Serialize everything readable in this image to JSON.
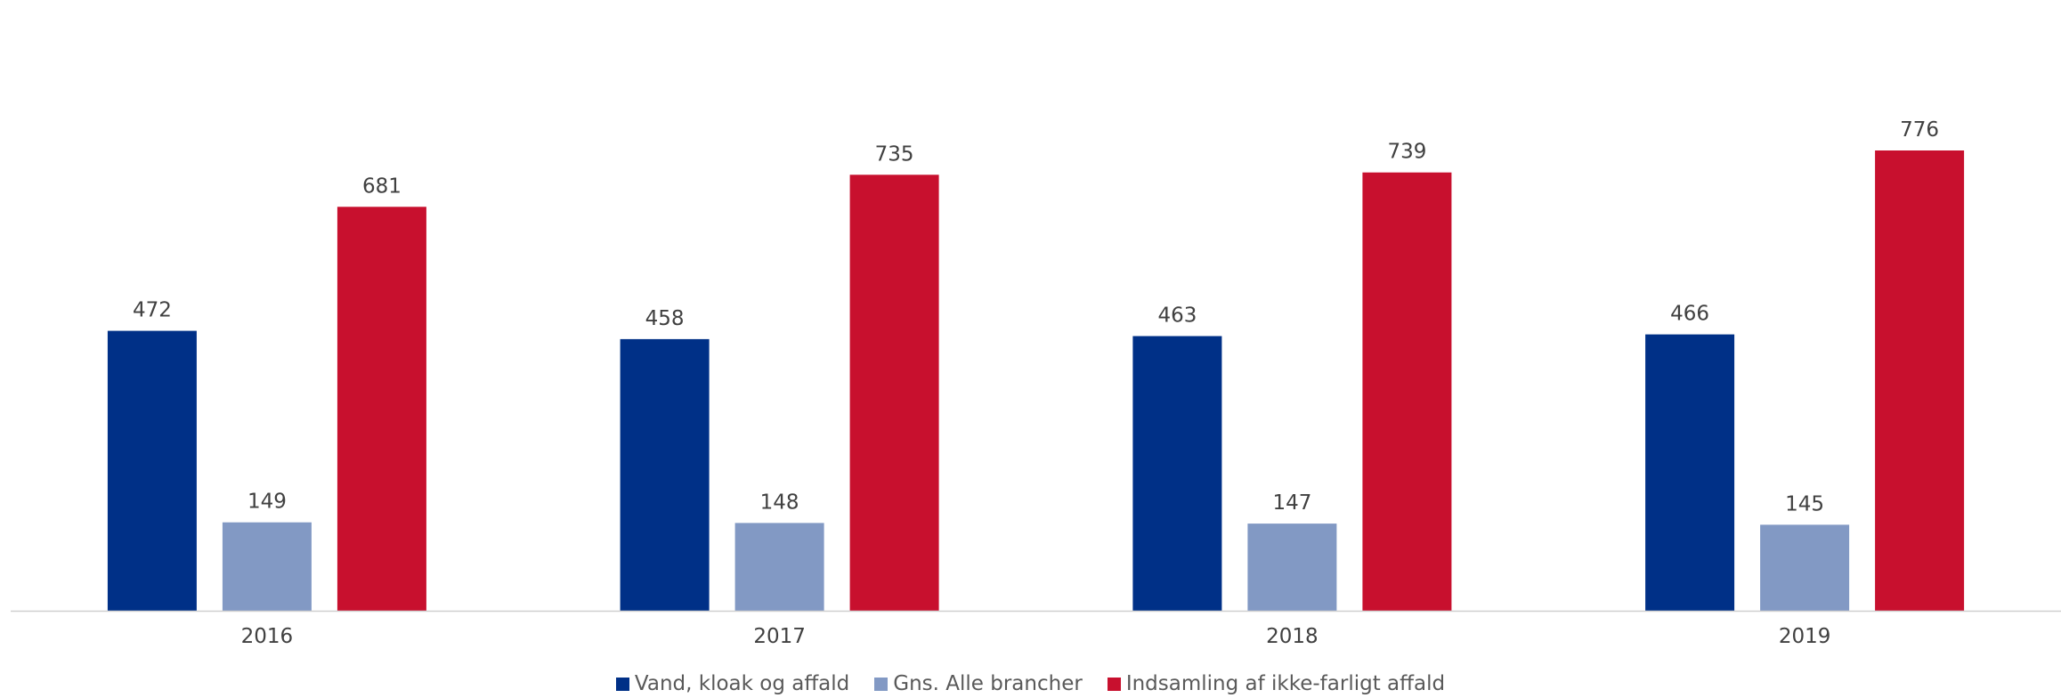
{
  "chart_data": {
    "type": "bar",
    "categories": [
      "2016",
      "2017",
      "2018",
      "2019"
    ],
    "series": [
      {
        "name": "Vand, kloak og affald",
        "color": "#003087",
        "values": [
          472,
          458,
          463,
          466
        ]
      },
      {
        "name": "Gns. Alle brancher",
        "color": "#8299c4",
        "values": [
          149,
          148,
          147,
          145
        ]
      },
      {
        "name": "Indsamling af ikke-farligt affald",
        "color": "#c8102e",
        "values": [
          681,
          735,
          739,
          776
        ]
      }
    ],
    "title": "",
    "xlabel": "",
    "ylabel": "",
    "ylim": [
      0,
      800
    ],
    "grid": false,
    "legend_position": "bottom"
  }
}
